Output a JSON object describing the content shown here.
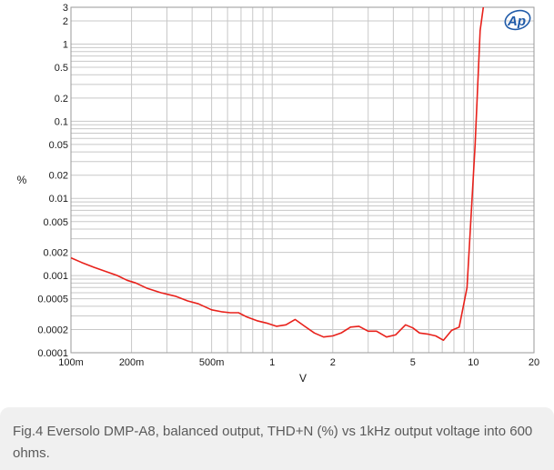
{
  "chart_data": {
    "type": "line",
    "xlabel": "V",
    "ylabel": "%",
    "x_scale": "log",
    "y_scale": "log",
    "xlim": [
      0.1,
      20
    ],
    "ylim": [
      0.0001,
      3
    ],
    "grid": true,
    "line_color": "#e8211b",
    "x_ticks": [
      {
        "value": 0.1,
        "label": "100m"
      },
      {
        "value": 0.2,
        "label": "200m"
      },
      {
        "value": 0.5,
        "label": "500m"
      },
      {
        "value": 1,
        "label": "1"
      },
      {
        "value": 2,
        "label": "2"
      },
      {
        "value": 5,
        "label": "5"
      },
      {
        "value": 10,
        "label": "10"
      },
      {
        "value": 20,
        "label": "20"
      }
    ],
    "y_ticks": [
      {
        "value": 3,
        "label": "3"
      },
      {
        "value": 2,
        "label": "2"
      },
      {
        "value": 1,
        "label": "1"
      },
      {
        "value": 0.5,
        "label": "0.5"
      },
      {
        "value": 0.2,
        "label": "0.2"
      },
      {
        "value": 0.1,
        "label": "0.1"
      },
      {
        "value": 0.05,
        "label": "0.05"
      },
      {
        "value": 0.02,
        "label": "0.02"
      },
      {
        "value": 0.01,
        "label": "0.01"
      },
      {
        "value": 0.005,
        "label": "0.005"
      },
      {
        "value": 0.002,
        "label": "0.002"
      },
      {
        "value": 0.001,
        "label": "0.001"
      },
      {
        "value": 0.0005,
        "label": "0.0005"
      },
      {
        "value": 0.0002,
        "label": "0.0002"
      },
      {
        "value": 0.0001,
        "label": "0.0001"
      }
    ],
    "series": [
      {
        "x": [
          0.1,
          0.113,
          0.13,
          0.15,
          0.17,
          0.19,
          0.21,
          0.24,
          0.28,
          0.33,
          0.38,
          0.43,
          0.5,
          0.56,
          0.62,
          0.68,
          0.75,
          0.84,
          0.95,
          1.05,
          1.17,
          1.3,
          1.45,
          1.62,
          1.8,
          2.0,
          2.2,
          2.45,
          2.7,
          3.0,
          3.3,
          3.7,
          4.1,
          4.6,
          5.0,
          5.4,
          5.9,
          6.5,
          7.1,
          7.8,
          8.5,
          9.3,
          10.2,
          10.8,
          11.2,
          11.8
        ],
        "y": [
          0.0017,
          0.00148,
          0.00128,
          0.00112,
          0.001,
          0.00087,
          0.0008,
          0.00068,
          0.0006,
          0.00054,
          0.00047,
          0.00043,
          0.00036,
          0.00034,
          0.00033,
          0.00033,
          0.00029,
          0.00026,
          0.00024,
          0.00022,
          0.00023,
          0.00027,
          0.00022,
          0.00018,
          0.00016,
          0.000165,
          0.00018,
          0.000215,
          0.00022,
          0.00019,
          0.00019,
          0.00016,
          0.00017,
          0.00023,
          0.00021,
          0.00018,
          0.000175,
          0.000165,
          0.000145,
          0.000195,
          0.000215,
          0.0007,
          0.05,
          1.5,
          3.0,
          5.0
        ]
      }
    ]
  },
  "logo": {
    "text": "Ap"
  },
  "caption": {
    "text": "Fig.4 Eversolo DMP-A8, balanced output, THD+N (%) vs 1kHz output voltage into 600 ohms."
  }
}
